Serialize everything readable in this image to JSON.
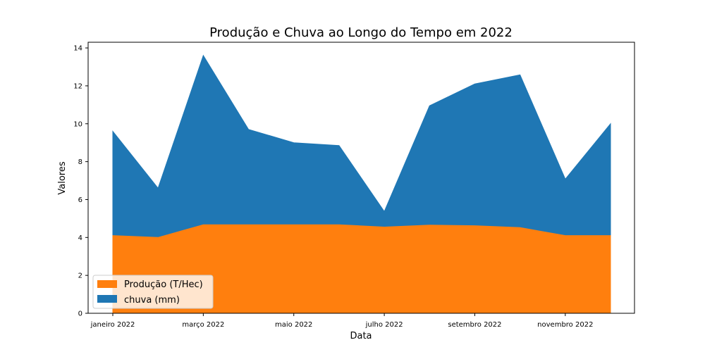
{
  "chart_data": {
    "type": "area",
    "stacked": true,
    "title": "Produção e Chuva ao Longo do Tempo em 2022",
    "xlabel": "Data",
    "ylabel": "Valores",
    "x": [
      "2022-01",
      "2022-02",
      "2022-03",
      "2022-04",
      "2022-05",
      "2022-06",
      "2022-07",
      "2022-08",
      "2022-09",
      "2022-10",
      "2022-11",
      "2022-12"
    ],
    "xtick_labels": [
      "janeiro 2022",
      "março 2022",
      "maio 2022",
      "julho 2022",
      "setembro 2022",
      "novembro 2022"
    ],
    "xtick_values": [
      "2022-01",
      "2022-03",
      "2022-05",
      "2022-07",
      "2022-09",
      "2022-11"
    ],
    "ylim": [
      0,
      14.3
    ],
    "yticks": [
      0,
      2,
      4,
      6,
      8,
      10,
      12,
      14
    ],
    "series": [
      {
        "name": "Produção (T/Hec)",
        "color": "#ff7f0e",
        "values": [
          4.1,
          4.0,
          4.67,
          4.67,
          4.67,
          4.67,
          4.55,
          4.65,
          4.62,
          4.52,
          4.1,
          4.1
        ]
      },
      {
        "name": "chuva (mm)",
        "color": "#1f77b4",
        "values": [
          5.5,
          2.6,
          8.93,
          5.03,
          4.33,
          4.18,
          0.82,
          6.3,
          7.48,
          8.06,
          2.98,
          5.9
        ]
      }
    ],
    "legend": "lower-left",
    "grid": false
  }
}
